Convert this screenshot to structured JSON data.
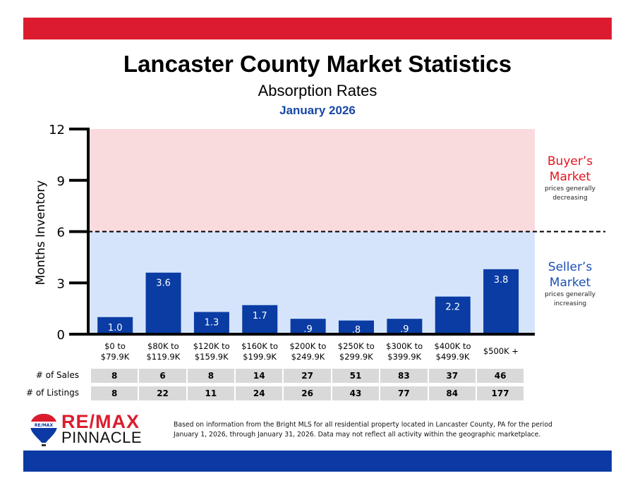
{
  "header": {
    "title": "Lancaster County Market Statistics",
    "subtitle": "Absorption Rates",
    "date": "January 2026"
  },
  "colors": {
    "top_bar": "#dc1c2e",
    "bottom_bar": "#0b3aa5",
    "bar": "#0a3ca3",
    "buyer_zone": "#f9dadd",
    "seller_zone": "#d6e4fb",
    "buyer_text": "#e3141c",
    "seller_text": "#1a4fb4"
  },
  "chart_data": {
    "type": "bar",
    "title": "Absorption Rates",
    "xlabel": "",
    "ylabel": "Months Inventory",
    "ylim": [
      0,
      12
    ],
    "yticks": [
      0,
      3,
      6,
      9,
      12
    ],
    "threshold": 6,
    "categories": [
      [
        "$0 to",
        "$79.9K"
      ],
      [
        "$80K to",
        "$119.9K"
      ],
      [
        "$120K to",
        "$159.9K"
      ],
      [
        "$160K to",
        "$199.9K"
      ],
      [
        "$200K to",
        "$249.9K"
      ],
      [
        "$250K to",
        "$299.9K"
      ],
      [
        "$300K to",
        "$399.9K"
      ],
      [
        "$400K to",
        "$499.9K"
      ],
      [
        "$500K +"
      ]
    ],
    "values": [
      1.0,
      3.6,
      1.3,
      1.7,
      0.9,
      0.8,
      0.9,
      2.2,
      3.8
    ],
    "value_labels": [
      "1.0",
      "3.6",
      "1.3",
      "1.7",
      ".9",
      ".8",
      ".9",
      "2.2",
      "3.8"
    ],
    "zones": {
      "buyer": {
        "title_line1": "Buyer’s",
        "title_line2": "Market",
        "desc_line1": "prices generally",
        "desc_line2": "decreasing",
        "range": [
          6,
          12
        ]
      },
      "seller": {
        "title_line1": "Seller’s",
        "title_line2": "Market",
        "desc_line1": "prices generally",
        "desc_line2": "increasing",
        "range": [
          0,
          6
        ]
      }
    }
  },
  "table": {
    "rows": [
      {
        "label": "# of Sales",
        "values": [
          "8",
          "6",
          "8",
          "14",
          "27",
          "51",
          "83",
          "37",
          "46"
        ]
      },
      {
        "label": "# of Listings",
        "values": [
          "8",
          "22",
          "11",
          "24",
          "26",
          "43",
          "77",
          "84",
          "177"
        ]
      }
    ]
  },
  "footer": {
    "brand_line1": "RE/MAX",
    "brand_line2": "PINNACLE",
    "balloon_text": "RE/MAX",
    "disclaimer_line1": "Based on information from the Bright MLS for all residential property located in Lancaster County, PA for the period",
    "disclaimer_line2": "January 1, 2026, through January 31, 2026.  Data may not reflect all activity within the geographic marketplace."
  }
}
